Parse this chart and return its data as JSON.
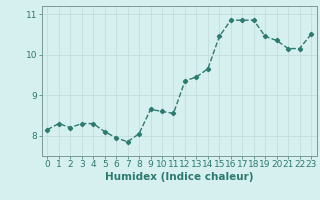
{
  "x": [
    0,
    1,
    2,
    3,
    4,
    5,
    6,
    7,
    8,
    9,
    10,
    11,
    12,
    13,
    14,
    15,
    16,
    17,
    18,
    19,
    20,
    21,
    22,
    23
  ],
  "y": [
    8.15,
    8.3,
    8.2,
    8.3,
    8.3,
    8.1,
    7.95,
    7.85,
    8.05,
    8.65,
    8.6,
    8.55,
    9.35,
    9.45,
    9.65,
    10.45,
    10.85,
    10.85,
    10.85,
    10.45,
    10.35,
    10.15,
    10.15,
    10.5
  ],
  "xlabel": "Humidex (Indice chaleur)",
  "ylim": [
    7.5,
    11.2
  ],
  "xlim": [
    -0.5,
    23.5
  ],
  "yticks": [
    8,
    9,
    10,
    11
  ],
  "xticks": [
    0,
    1,
    2,
    3,
    4,
    5,
    6,
    7,
    8,
    9,
    10,
    11,
    12,
    13,
    14,
    15,
    16,
    17,
    18,
    19,
    20,
    21,
    22,
    23
  ],
  "line_color": "#2d7a6e",
  "bg_color": "#d6f0f0",
  "grid_color": "#c4dede",
  "axis_color": "#7a9a9a",
  "label_color": "#2d7a6e",
  "marker": "D",
  "markersize": 2.2,
  "linewidth": 1.0,
  "xlabel_fontsize": 7.5,
  "tick_fontsize": 6.5
}
